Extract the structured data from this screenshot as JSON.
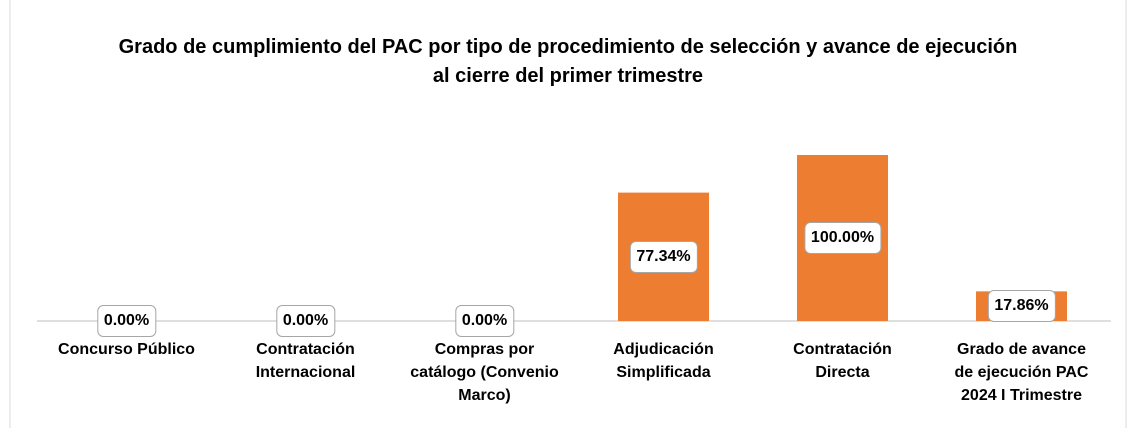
{
  "chart_data": {
    "type": "bar",
    "title": "Grado de cumplimiento del PAC por tipo de procedimiento de selección y avance de ejecución al cierre del primer trimestre",
    "categories": [
      "Concurso Público",
      "Contratación Internacional",
      "Compras por catálogo (Convenio Marco)",
      "Adjudicación Simplificada",
      "Contratación Directa",
      "Grado de avance de ejecución PAC 2024 I Trimestre"
    ],
    "values": [
      0,
      0,
      0,
      77.34,
      100,
      17.86
    ],
    "value_labels": [
      "0.00%",
      "0.00%",
      "0.00%",
      "77.34%",
      "100.00%",
      "17.86%"
    ],
    "color": "#ED7D31"
  }
}
